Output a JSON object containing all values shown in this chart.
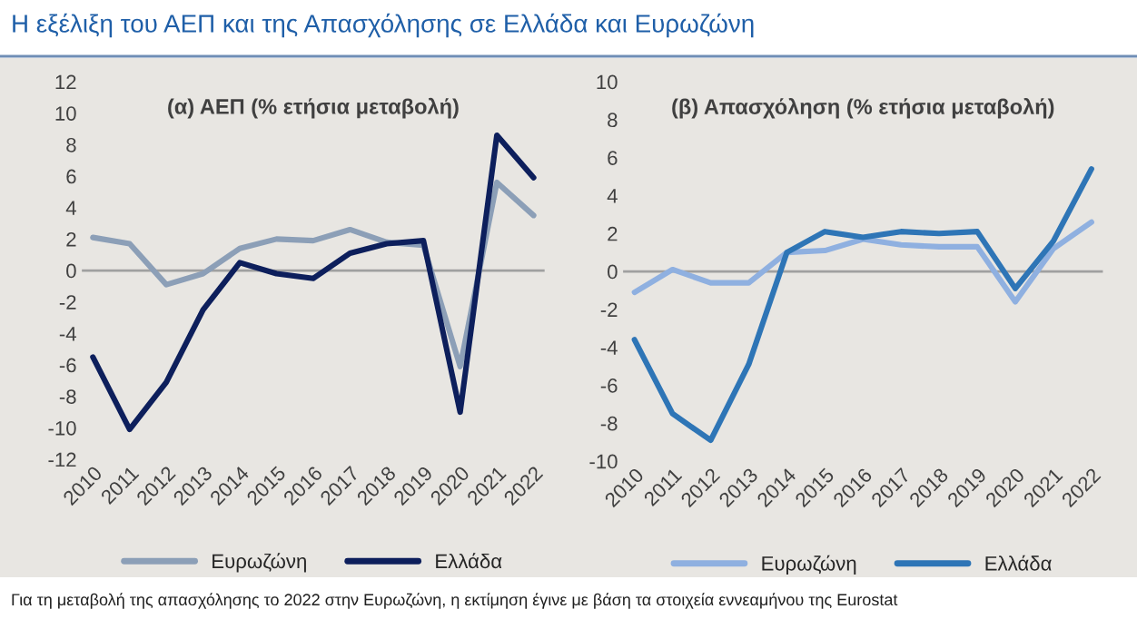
{
  "chart_data": [
    {
      "type": "line",
      "title": "(α) ΑΕΠ (% ετήσια μεταβολή)",
      "annotations": [
        "Η εξέλιξη του ΑΕΠ και της Απασχόλησης σε Ελλάδα και Ευρωζώνη"
      ],
      "categories": [
        "2010",
        "2011",
        "2012",
        "2013",
        "2014",
        "2015",
        "2016",
        "2017",
        "2018",
        "2019",
        "2020",
        "2021",
        "2022"
      ],
      "series": [
        {
          "name": "Ευρωζώνη",
          "color": "#8c9fb7",
          "values": [
            2.1,
            1.7,
            -0.9,
            -0.2,
            1.4,
            2.0,
            1.9,
            2.6,
            1.8,
            1.6,
            -6.1,
            5.6,
            3.5
          ]
        },
        {
          "name": "Ελλάδα",
          "color": "#0d1f5c",
          "values": [
            -5.5,
            -10.1,
            -7.1,
            -2.5,
            0.5,
            -0.2,
            -0.5,
            1.1,
            1.7,
            1.9,
            -9.0,
            8.6,
            5.9
          ]
        }
      ],
      "ylim": [
        -12,
        12
      ],
      "yticks": [
        -12,
        -10,
        -8,
        -6,
        -4,
        -2,
        0,
        2,
        4,
        6,
        8,
        10,
        12
      ],
      "ref_lines": [
        {
          "axis": "y",
          "value": 0,
          "color": "#a0a0a0"
        }
      ],
      "grid": false,
      "legend": "bottom",
      "marker": "none",
      "line_style": "solid"
    },
    {
      "type": "line",
      "title": "(β) Απασχόληση (% ετήσια μεταβολή)",
      "annotations": [
        "Για τη μεταβολή της απασχόλησης το 2022 στην Ευρωζώνη, η εκτίμηση έγινε με βάση τα στοιχεία εννεαμήνου της Eurostat"
      ],
      "categories": [
        "2010",
        "2011",
        "2012",
        "2013",
        "2014",
        "2015",
        "2016",
        "2017",
        "2018",
        "2019",
        "2020",
        "2021",
        "2022"
      ],
      "series": [
        {
          "name": "Ευρωζώνη",
          "color": "#8fb0e0",
          "values": [
            -1.1,
            0.1,
            -0.6,
            -0.6,
            1.0,
            1.1,
            1.7,
            1.4,
            1.3,
            1.3,
            -1.6,
            1.2,
            2.6
          ]
        },
        {
          "name": "Ελλάδα",
          "color": "#2e75b6",
          "values": [
            -3.6,
            -7.5,
            -8.9,
            -4.9,
            1.0,
            2.1,
            1.8,
            2.1,
            2.0,
            2.1,
            -0.9,
            1.6,
            5.4
          ]
        }
      ],
      "ylim": [
        -10,
        10
      ],
      "yticks": [
        -10,
        -8,
        -6,
        -4,
        -2,
        0,
        2,
        4,
        6,
        8,
        10
      ],
      "ref_lines": [
        {
          "axis": "y",
          "value": 0,
          "color": "#a0a0a0"
        }
      ],
      "grid": false,
      "legend": "bottom",
      "marker": "none",
      "line_style": "solid"
    }
  ]
}
